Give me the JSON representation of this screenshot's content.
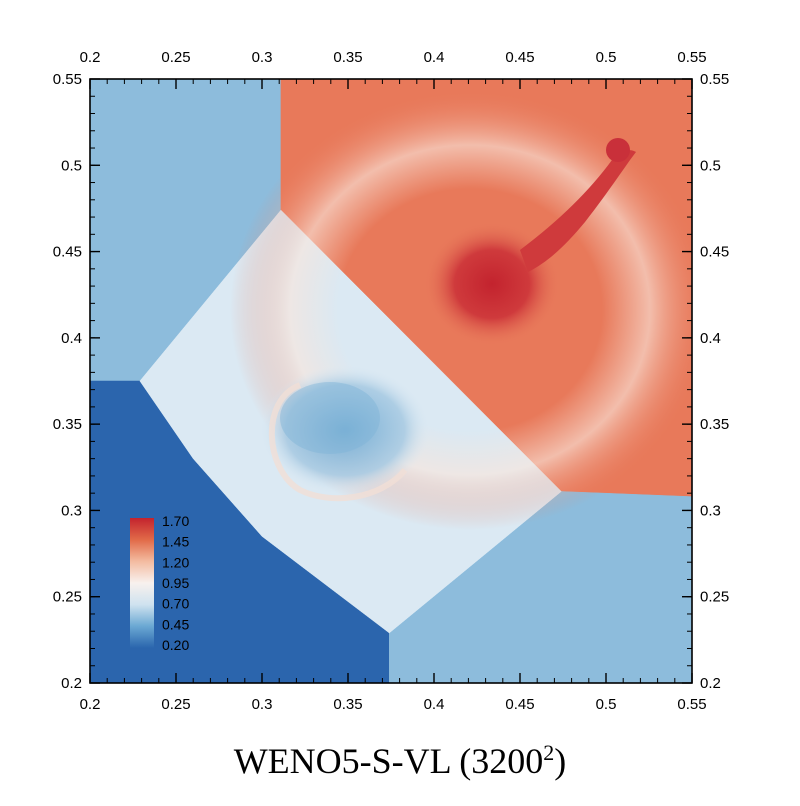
{
  "caption": {
    "text": "WENO5-S-VL (3200",
    "sup": "2",
    "close": ")"
  },
  "chart_data": {
    "type": "heatmap",
    "title": "",
    "xlabel": "",
    "ylabel": "",
    "xlim": [
      0.2,
      0.55
    ],
    "ylim": [
      0.2,
      0.55
    ],
    "x_ticks": [
      "0.2",
      "0.25",
      "0.3",
      "0.35",
      "0.4",
      "0.45",
      "0.5",
      "0.55"
    ],
    "y_ticks": [
      "0.2",
      "0.25",
      "0.3",
      "0.35",
      "0.4",
      "0.45",
      "0.5",
      "0.55"
    ],
    "axes_labeled": [
      "bottom",
      "top",
      "left",
      "right"
    ],
    "colorbar": {
      "placement": "bottom-left",
      "labels": [
        "1.70",
        "1.45",
        "1.20",
        "0.95",
        "0.70",
        "0.45",
        "0.20"
      ],
      "min": 0.2,
      "max": 1.7,
      "colormap": [
        "#2a65ad",
        "#6aa8d3",
        "#cfe2ef",
        "#f8f1ee",
        "#f3bba0",
        "#e16a48",
        "#c3232e"
      ]
    },
    "colors": {
      "low_density": "#2b65ad",
      "mid_density": "#8dbcdc",
      "pale": "#dbe9f3",
      "high_density": "#e8795a",
      "peak": "#c3232e"
    },
    "regions": [
      {
        "name": "upper-left quadrant",
        "value": 0.5,
        "color": "#8dbcdc",
        "polygon": [
          [
            0.2,
            0.55
          ],
          [
            0.311,
            0.55
          ],
          [
            0.311,
            0.474
          ],
          [
            0.229,
            0.375
          ],
          [
            0.2,
            0.375
          ]
        ]
      },
      {
        "name": "lower-left quadrant",
        "value": 0.2,
        "color": "#2b65ad",
        "polygon": [
          [
            0.2,
            0.375
          ],
          [
            0.229,
            0.375
          ],
          [
            0.26,
            0.33
          ],
          [
            0.3,
            0.285
          ],
          [
            0.374,
            0.229
          ],
          [
            0.374,
            0.2
          ],
          [
            0.2,
            0.2
          ]
        ]
      },
      {
        "name": "upper-right quadrant",
        "value": 1.5,
        "color": "#e8795a",
        "polygon": [
          [
            0.311,
            0.55
          ],
          [
            0.55,
            0.55
          ],
          [
            0.55,
            0.308
          ],
          [
            0.474,
            0.311
          ],
          [
            0.311,
            0.474
          ]
        ]
      },
      {
        "name": "lower-right quadrant",
        "value": 0.5,
        "color": "#8dbcdc",
        "polygon": [
          [
            0.374,
            0.2
          ],
          [
            0.55,
            0.2
          ],
          [
            0.55,
            0.308
          ],
          [
            0.474,
            0.311
          ],
          [
            0.374,
            0.229
          ]
        ]
      },
      {
        "name": "central interaction zone",
        "value": 0.7,
        "color": "#dbe9f3",
        "polygon": [
          [
            0.229,
            0.375
          ],
          [
            0.311,
            0.474
          ],
          [
            0.474,
            0.311
          ],
          [
            0.374,
            0.229
          ],
          [
            0.3,
            0.285
          ],
          [
            0.26,
            0.33
          ]
        ]
      }
    ]
  }
}
